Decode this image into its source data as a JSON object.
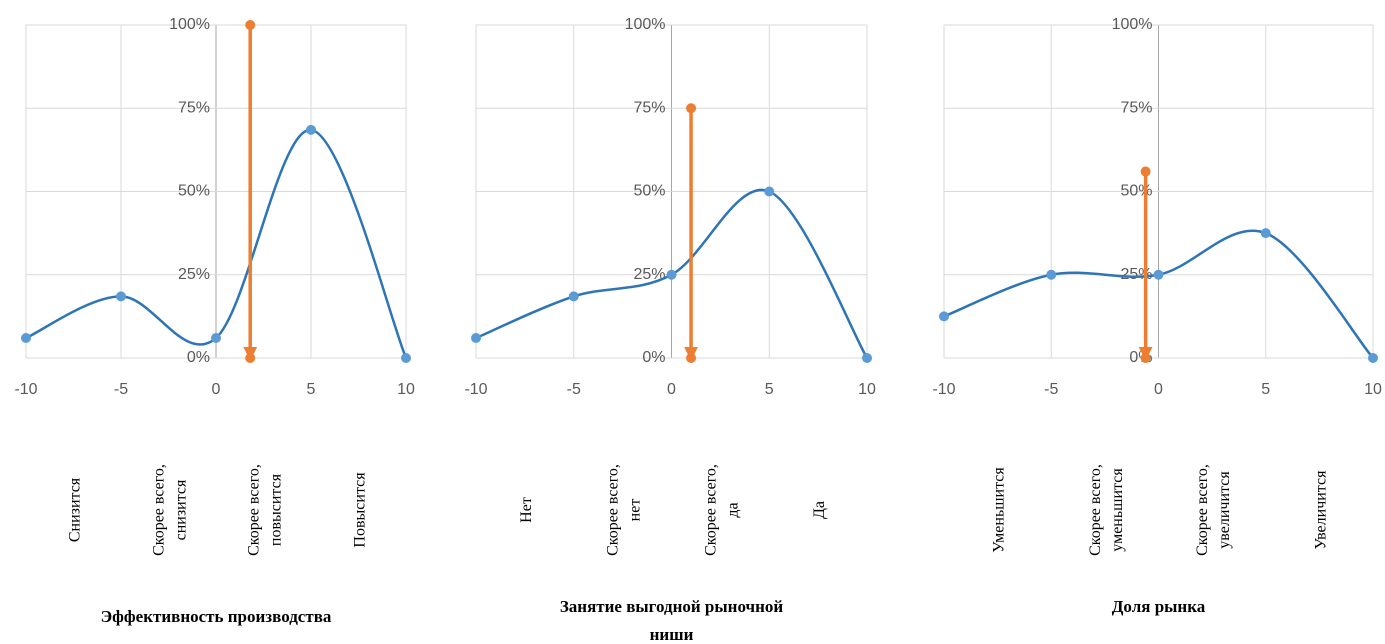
{
  "chart_data": [
    {
      "type": "scatter",
      "title": [
        "Эффективность производства"
      ],
      "x_labels": [
        [
          "Снизится"
        ],
        [
          "Скорее всего,",
          "снизится"
        ],
        [
          "Скорее всего,",
          "повысится"
        ],
        [
          "Повысится"
        ]
      ],
      "xlim": [
        -10,
        10
      ],
      "ylim": [
        0,
        100
      ],
      "xticks": [
        -10,
        -5,
        0,
        5,
        10
      ],
      "yticks": [
        {
          "value": 0,
          "label": "0%"
        },
        {
          "value": 25,
          "label": "25%"
        },
        {
          "value": 50,
          "label": "50%"
        },
        {
          "value": 75,
          "label": "75%"
        },
        {
          "value": 100,
          "label": "100%"
        }
      ],
      "grid": true,
      "series": [
        {
          "color": "#2e75b6",
          "smooth": true,
          "x": [
            -10,
            -5,
            0,
            5,
            10
          ],
          "values": [
            6,
            18.5,
            6,
            68.5,
            0
          ]
        },
        {
          "color": "#ed7d31",
          "arrow": "end",
          "x": [
            1.8,
            1.8
          ],
          "values": [
            100,
            0
          ]
        }
      ]
    },
    {
      "type": "scatter",
      "title": [
        "Занятие выгодной рыночной",
        "ниши"
      ],
      "x_labels": [
        [
          "Нет"
        ],
        [
          "Скорее всего,",
          "нет"
        ],
        [
          "Скорее всего,",
          "да"
        ],
        [
          "Да"
        ]
      ],
      "xlim": [
        -10,
        10
      ],
      "ylim": [
        0,
        100
      ],
      "xticks": [
        -10,
        -5,
        0,
        5,
        10
      ],
      "yticks": [
        {
          "value": 0,
          "label": "0%"
        },
        {
          "value": 25,
          "label": "25%"
        },
        {
          "value": 50,
          "label": "50%"
        },
        {
          "value": 75,
          "label": "75%"
        },
        {
          "value": 100,
          "label": "100%"
        }
      ],
      "grid": true,
      "series": [
        {
          "color": "#2e75b6",
          "smooth": true,
          "x": [
            -10,
            -5,
            0,
            5,
            10
          ],
          "values": [
            6,
            18.5,
            25,
            50,
            0
          ]
        },
        {
          "color": "#ed7d31",
          "arrow": "end",
          "x": [
            1,
            1
          ],
          "values": [
            75,
            0
          ]
        }
      ]
    },
    {
      "type": "scatter",
      "title": [
        "Доля рынка"
      ],
      "x_labels": [
        [
          "Уменьшится"
        ],
        [
          "Скорее всего,",
          "уменьшится"
        ],
        [
          "Скорее всего,",
          "увеличится"
        ],
        [
          "Увеличится"
        ]
      ],
      "xlim": [
        -10,
        10
      ],
      "ylim": [
        0,
        100
      ],
      "xticks": [
        -10,
        -5,
        0,
        5,
        10
      ],
      "yticks": [
        {
          "value": 0,
          "label": "0%"
        },
        {
          "value": 25,
          "label": "25%"
        },
        {
          "value": 50,
          "label": "50%"
        },
        {
          "value": 75,
          "label": "75%"
        },
        {
          "value": 100,
          "label": "100%"
        }
      ],
      "grid": true,
      "series": [
        {
          "color": "#2e75b6",
          "smooth": true,
          "x": [
            -10,
            -5,
            0,
            5,
            10
          ],
          "values": [
            12.5,
            25,
            25,
            37.5,
            0
          ]
        },
        {
          "color": "#ed7d31",
          "arrow": "end",
          "x": [
            -0.6,
            -0.6
          ],
          "values": [
            56,
            0
          ]
        }
      ]
    }
  ]
}
